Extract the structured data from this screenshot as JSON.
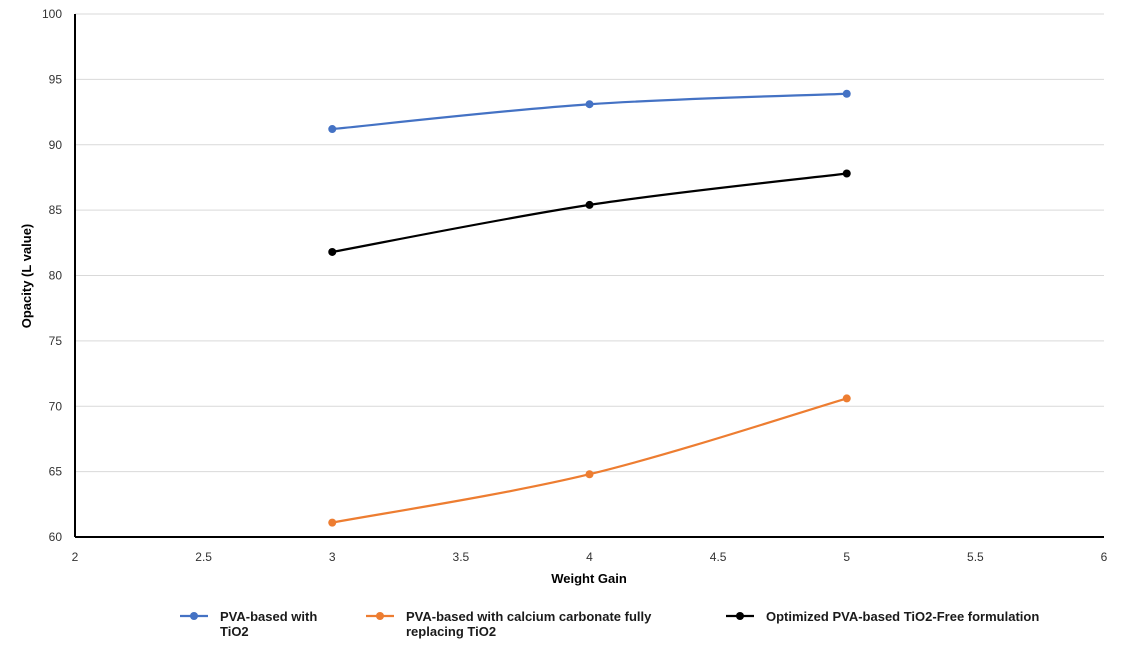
{
  "chart_data": {
    "type": "line",
    "title": "",
    "xlabel": "Weight Gain",
    "ylabel": "Opacity (L value)",
    "xlim": [
      2,
      6
    ],
    "ylim": [
      60,
      100
    ],
    "x_ticks": [
      "2",
      "2.5",
      "3",
      "3.5",
      "4",
      "4.5",
      "5",
      "5.5",
      "6"
    ],
    "y_ticks": [
      "60",
      "65",
      "70",
      "75",
      "80",
      "85",
      "90",
      "95",
      "100"
    ],
    "grid": "horizontal",
    "legend_position": "bottom",
    "x": [
      3,
      4,
      5
    ],
    "series": [
      {
        "name": "PVA-based with TiO2",
        "legend_lines": [
          "PVA-based with",
          "TiO2"
        ],
        "color": "#4472C4",
        "values": [
          91.2,
          93.1,
          93.9
        ]
      },
      {
        "name": "PVA-based with calcium carbonate fully replacing TiO2",
        "legend_lines": [
          "PVA-based with calcium carbonate fully",
          "replacing TiO2"
        ],
        "color": "#ED7D31",
        "values": [
          61.1,
          64.8,
          70.6
        ]
      },
      {
        "name": "Optimized PVA-based TiO2-Free formulation",
        "legend_lines": [
          "Optimized PVA-based TiO2-Free formulation"
        ],
        "color": "#000000",
        "values": [
          81.8,
          85.4,
          87.8
        ]
      }
    ]
  }
}
